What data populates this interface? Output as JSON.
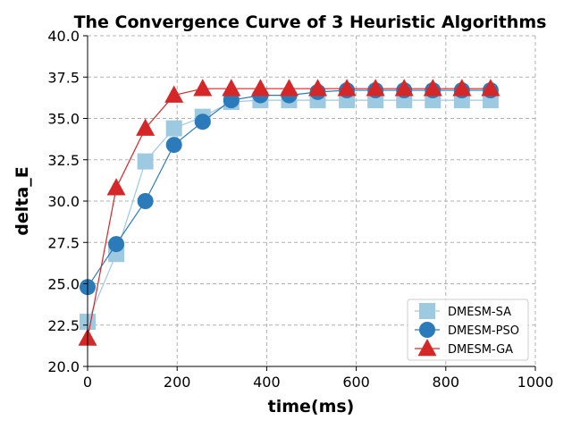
{
  "chart_data": {
    "type": "line",
    "title": "The Convergence Curve of 3 Heuristic Algorithms",
    "xlabel": "time(ms)",
    "ylabel": "delta_E",
    "xlim": [
      0,
      1000
    ],
    "ylim": [
      20.0,
      40.0
    ],
    "xticks": [
      0,
      200,
      400,
      600,
      800,
      1000
    ],
    "xtick_labels": [
      "0",
      "200",
      "400",
      "600",
      "800",
      "1000"
    ],
    "yticks": [
      20.0,
      22.5,
      25.0,
      27.5,
      30.0,
      32.5,
      35.0,
      37.5,
      40.0
    ],
    "ytick_labels": [
      "20.0",
      "22.5",
      "25.0",
      "27.5",
      "30.0",
      "32.5",
      "35.0",
      "37.5",
      "40.0"
    ],
    "grid": true,
    "legend_position": "bottom-right",
    "x": [
      0,
      64,
      129,
      193,
      257,
      321,
      386,
      450,
      514,
      579,
      643,
      707,
      771,
      836,
      900
    ],
    "series": [
      {
        "name": "DMESM-SA",
        "marker": "square",
        "color": "#9ecae1",
        "values": [
          22.7,
          26.8,
          32.4,
          34.4,
          35.1,
          36.0,
          36.1,
          36.1,
          36.1,
          36.1,
          36.1,
          36.1,
          36.1,
          36.1,
          36.1
        ]
      },
      {
        "name": "DMESM-PSO",
        "marker": "circle",
        "color": "#2b7bba",
        "values": [
          24.8,
          27.4,
          30.0,
          33.4,
          34.8,
          36.1,
          36.4,
          36.4,
          36.6,
          36.7,
          36.7,
          36.7,
          36.7,
          36.7,
          36.7
        ]
      },
      {
        "name": "DMESM-GA",
        "marker": "triangle",
        "color": "#d62728",
        "values": [
          21.7,
          30.8,
          34.4,
          36.4,
          36.8,
          36.8,
          36.8,
          36.8,
          36.8,
          36.8,
          36.8,
          36.8,
          36.8,
          36.8,
          36.8
        ]
      }
    ]
  }
}
